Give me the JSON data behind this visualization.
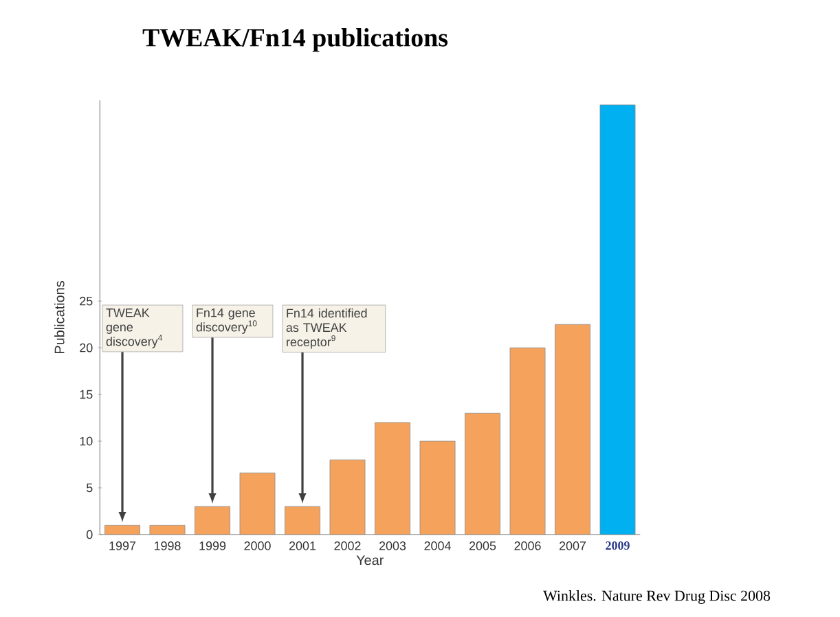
{
  "chart_data": {
    "type": "bar",
    "title": "TWEAK/Fn14 publications",
    "xlabel": "Year",
    "ylabel": "Publications",
    "categories": [
      "1997",
      "1998",
      "1999",
      "2000",
      "2001",
      "2002",
      "2003",
      "2004",
      "2005",
      "2006",
      "2007",
      "2009"
    ],
    "values": [
      1,
      1,
      3,
      6.6,
      3,
      8,
      12,
      10,
      13,
      20,
      22.5,
      46
    ],
    "colors": [
      "#f4a25c",
      "#f4a25c",
      "#f4a25c",
      "#f4a25c",
      "#f4a25c",
      "#f4a25c",
      "#f4a25c",
      "#f4a25c",
      "#f4a25c",
      "#f4a25c",
      "#f4a25c",
      "#00b0f0"
    ],
    "ylim": [
      0,
      46.5
    ],
    "yticks": [
      0,
      5,
      10,
      15,
      20,
      25
    ],
    "annotations": [
      {
        "text": "TWEAK gene discovery$^{4}$",
        "x": "1997",
        "y": 1
      },
      {
        "text": "Fn14 gene discovery$^{10}$",
        "x": "1999",
        "y": 3
      },
      {
        "text": "Fn14 identified as TWEAK receptor$^{9}$",
        "x": "2001",
        "y": 3
      },
      "Winkles. Nature Rev Drug Disc 2008"
    ]
  }
}
